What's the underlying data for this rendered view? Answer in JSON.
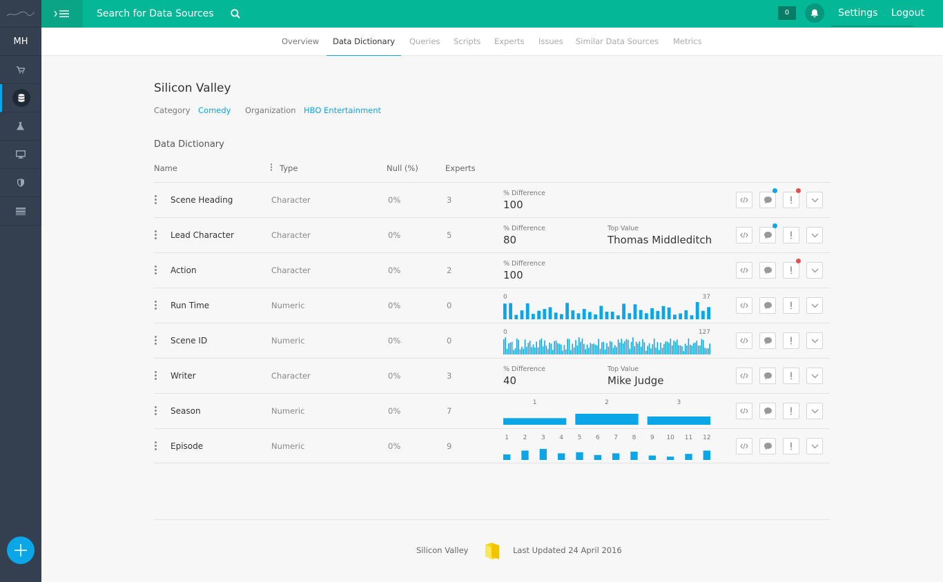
{
  "topbar": {
    "search_label": "Search for Data Sources",
    "notification_count": "0",
    "settings": "Settings",
    "logout": "Logout",
    "accent": "#04b897"
  },
  "sidebar": {
    "avatar": "MH",
    "items": [
      {
        "icon": "cart-icon"
      },
      {
        "icon": "database-icon",
        "active": true
      },
      {
        "icon": "flask-icon"
      },
      {
        "icon": "monitor-icon"
      },
      {
        "icon": "shield-icon"
      },
      {
        "icon": "list-icon"
      }
    ]
  },
  "tabs": [
    {
      "label": "Overview"
    },
    {
      "label": "Data Dictionary",
      "active": true
    },
    {
      "label": "Queries"
    },
    {
      "label": "Scripts"
    },
    {
      "label": "Experts"
    },
    {
      "label": "Issues"
    },
    {
      "label": "Similar Data Sources"
    },
    {
      "label": "Metrics"
    }
  ],
  "source": {
    "title": "Silicon Valley",
    "category_label": "Category",
    "category": "Comedy",
    "organization_label": "Organization",
    "organization": "HBO Entertainment"
  },
  "dictionary": {
    "title": "Data Dictionary",
    "columns": {
      "name": "Name",
      "type": "Type",
      "null": "Null (%)",
      "experts": "Experts"
    },
    "rows": [
      {
        "name": "Scene Heading",
        "type": "Character",
        "null": "0%",
        "experts": "3",
        "pd_label": "% Difference",
        "pd_value": "100"
      },
      {
        "name": "Lead Character",
        "type": "Character",
        "null": "0%",
        "experts": "5",
        "pd_label": "% Difference",
        "pd_value": "80",
        "tv_label": "Top Value",
        "tv_value": "Thomas Middleditch"
      },
      {
        "name": "Action",
        "type": "Character",
        "null": "0%",
        "experts": "2",
        "pd_label": "% Difference",
        "pd_value": "100"
      },
      {
        "name": "Run Time",
        "type": "Numeric",
        "null": "0%",
        "experts": "0",
        "hist_min": "0",
        "hist_max": "37"
      },
      {
        "name": "Scene ID",
        "type": "Numeric",
        "null": "0%",
        "experts": "0",
        "hist_min": "0",
        "hist_max": "127"
      },
      {
        "name": "Writer",
        "type": "Character",
        "null": "0%",
        "experts": "3",
        "pd_label": "% Difference",
        "pd_value": "40",
        "tv_label": "Top Value",
        "tv_value": "Mike Judge"
      },
      {
        "name": "Season",
        "type": "Numeric",
        "null": "0%",
        "experts": "7"
      },
      {
        "name": "Episode",
        "type": "Numeric",
        "null": "0%",
        "experts": "9"
      }
    ]
  },
  "chart_data": [
    {
      "type": "bar",
      "title": "",
      "categories": [
        "1",
        "2",
        "3"
      ],
      "values": [
        0.6,
        1.0,
        0.75
      ]
    },
    {
      "type": "bar",
      "title": "",
      "categories": [
        "1",
        "2",
        "3",
        "4",
        "5",
        "6",
        "7",
        "8",
        "9",
        "10",
        "11",
        "12"
      ],
      "values": [
        0.5,
        0.85,
        1.0,
        0.6,
        0.7,
        0.45,
        0.6,
        0.75,
        0.4,
        0.3,
        0.55,
        0.85
      ]
    }
  ],
  "footer": {
    "name": "Silicon Valley",
    "updated": "Last Updated 24 April 2016"
  }
}
